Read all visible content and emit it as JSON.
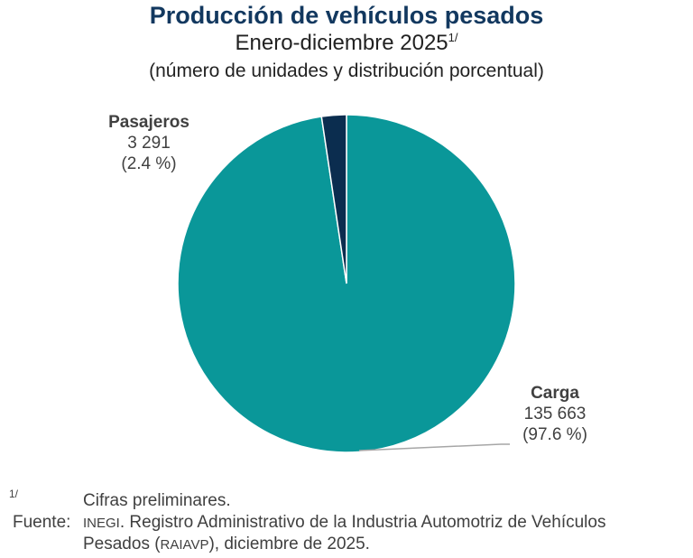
{
  "chart_data": {
    "type": "pie",
    "title": "Producción de vehículos pesados",
    "subtitle": "Enero-diciembre 2025",
    "subtitle_note": "1/",
    "subtitle2": "(número de unidades y distribución porcentual)",
    "slices": [
      {
        "name": "Carga",
        "value": 135663,
        "value_label": "135 663",
        "percent_label": "(97.6 %)",
        "percent": 97.6,
        "color": "#0a9799"
      },
      {
        "name": "Pasajeros",
        "value": 3291,
        "value_label": "3 291",
        "percent_label": "(2.4 %)",
        "percent": 2.4,
        "color": "#0b2d4f"
      }
    ]
  },
  "footnotes": {
    "note_marker": "1/",
    "note_text": "Cifras preliminares.",
    "source_label": "Fuente:",
    "source_org": "INEGI",
    "source_text_1": ". Registro Administrativo de la Industria Automotriz de Vehículos",
    "source_text_2a": "Pesados (",
    "source_abbr": "RAIAVP",
    "source_text_2b": "), diciembre de 2025."
  }
}
